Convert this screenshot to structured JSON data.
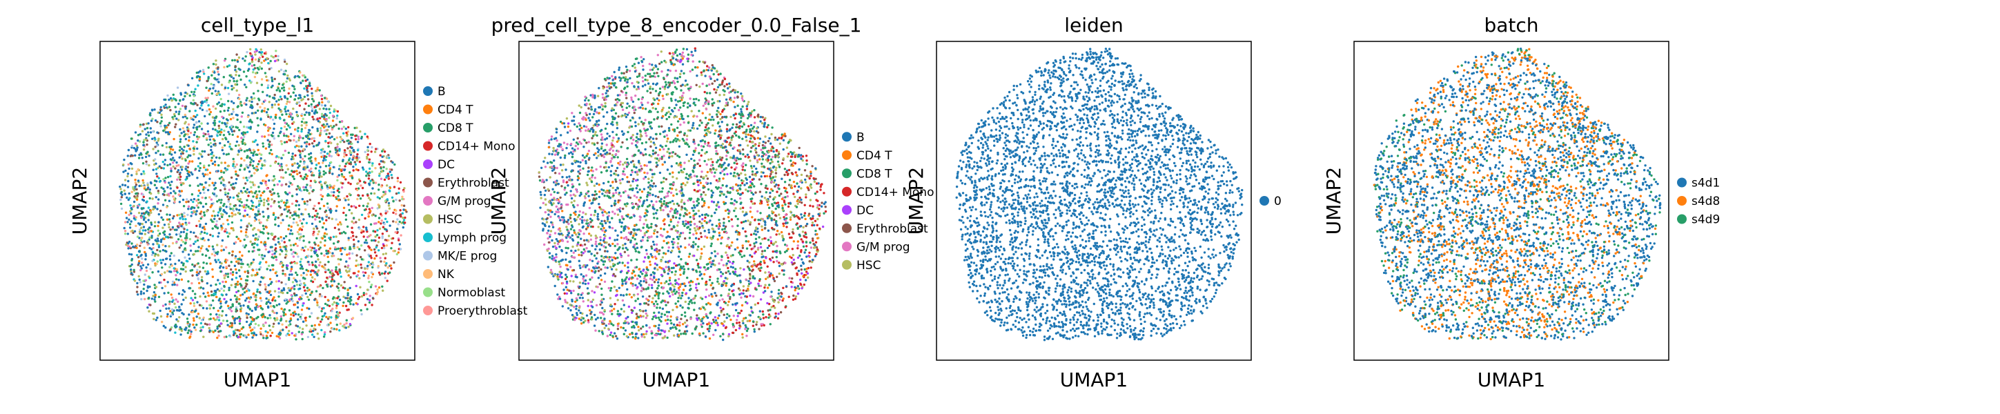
{
  "figure": {
    "background": "#ffffff"
  },
  "chart_data": [
    {
      "type": "scatter",
      "title": "cell_type_l1",
      "xlabel": "UMAP1",
      "ylabel": "UMAP2",
      "grid": false,
      "ticks": "none",
      "legend_position": "right",
      "point_count_approx": 4200,
      "series": [
        {
          "name": "B",
          "color": "#1f77b4",
          "weight": 26,
          "region": "left"
        },
        {
          "name": "CD4 T",
          "color": "#ff7f0e",
          "weight": 14,
          "region": "center-bottom"
        },
        {
          "name": "CD8 T",
          "color": "#279e68",
          "weight": 22,
          "region": "center"
        },
        {
          "name": "CD14+ Mono",
          "color": "#d62728",
          "weight": 12,
          "region": "right"
        },
        {
          "name": "DC",
          "color": "#aa40fc",
          "weight": 2,
          "region": "bottom"
        },
        {
          "name": "Erythroblast",
          "color": "#8c564b",
          "weight": 3,
          "region": "any"
        },
        {
          "name": "G/M prog",
          "color": "#e377c2",
          "weight": 2,
          "region": "any"
        },
        {
          "name": "HSC",
          "color": "#b5bd61",
          "weight": 6,
          "region": "any"
        },
        {
          "name": "Lymph prog",
          "color": "#17becf",
          "weight": 3,
          "region": "any"
        },
        {
          "name": "MK/E prog",
          "color": "#aec7e8",
          "weight": 3,
          "region": "any"
        },
        {
          "name": "NK",
          "color": "#ffbb78",
          "weight": 3,
          "region": "any"
        },
        {
          "name": "Normoblast",
          "color": "#98df8a",
          "weight": 2,
          "region": "any"
        },
        {
          "name": "Proerythroblast",
          "color": "#ff9896",
          "weight": 2,
          "region": "any"
        }
      ]
    },
    {
      "type": "scatter",
      "title": "pred_cell_type_8_encoder_0.0_False_1",
      "xlabel": "UMAP1",
      "ylabel": "UMAP2",
      "grid": false,
      "ticks": "none",
      "legend_position": "right",
      "point_count_approx": 4200,
      "series": [
        {
          "name": "B",
          "color": "#1f77b4",
          "weight": 22,
          "region": "left"
        },
        {
          "name": "CD4 T",
          "color": "#ff7f0e",
          "weight": 12,
          "region": "center-bottom"
        },
        {
          "name": "CD8 T",
          "color": "#279e68",
          "weight": 22,
          "region": "center"
        },
        {
          "name": "CD14+ Mono",
          "color": "#d62728",
          "weight": 12,
          "region": "right"
        },
        {
          "name": "DC",
          "color": "#aa40fc",
          "weight": 8,
          "region": "bottom"
        },
        {
          "name": "Erythroblast",
          "color": "#8c564b",
          "weight": 4,
          "region": "any"
        },
        {
          "name": "G/M prog",
          "color": "#e377c2",
          "weight": 14,
          "region": "left"
        },
        {
          "name": "HSC",
          "color": "#b5bd61",
          "weight": 6,
          "region": "any"
        }
      ]
    },
    {
      "type": "scatter",
      "title": "leiden",
      "xlabel": "UMAP1",
      "ylabel": "UMAP2",
      "grid": false,
      "ticks": "none",
      "legend_position": "right",
      "point_count_approx": 4200,
      "series": [
        {
          "name": "0",
          "color": "#1f77b4",
          "weight": 100,
          "region": "any"
        }
      ]
    },
    {
      "type": "scatter",
      "title": "batch",
      "xlabel": "UMAP1",
      "ylabel": "UMAP2",
      "grid": false,
      "ticks": "none",
      "legend_position": "right",
      "point_count_approx": 4200,
      "series": [
        {
          "name": "s4d1",
          "color": "#1f77b4",
          "weight": 48,
          "region": "any"
        },
        {
          "name": "s4d8",
          "color": "#ff7f0e",
          "weight": 40,
          "region": "center"
        },
        {
          "name": "s4d9",
          "color": "#279e68",
          "weight": 12,
          "region": "any"
        }
      ]
    }
  ]
}
